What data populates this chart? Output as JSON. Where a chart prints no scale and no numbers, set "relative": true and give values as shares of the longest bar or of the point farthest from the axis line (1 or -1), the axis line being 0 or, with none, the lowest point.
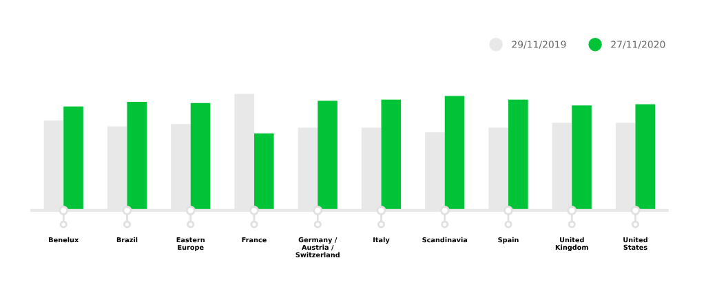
{
  "chart_data": {
    "type": "bar",
    "relative": true,
    "categories": [
      "Benelux",
      "Brazil",
      "Eastern\nEurope",
      "France",
      "Germany /\nAustria /\nSwitzerland",
      "Italy",
      "Scandinavia",
      "Spain",
      "United\nKingdom",
      "United\nStates"
    ],
    "series": [
      {
        "name": "29/11/2019",
        "color": "#e8e8e8",
        "values": [
          0.77,
          0.72,
          0.74,
          1,
          0.71,
          0.71,
          0.67,
          0.71,
          0.75,
          0.75
        ]
      },
      {
        "name": "27/11/2020",
        "color": "#00c337",
        "values": [
          0.89,
          0.93,
          0.92,
          0.66,
          0.94,
          0.95,
          0.98,
          0.95,
          0.9,
          0.91
        ]
      }
    ],
    "legend": "top right",
    "grid": false
  }
}
